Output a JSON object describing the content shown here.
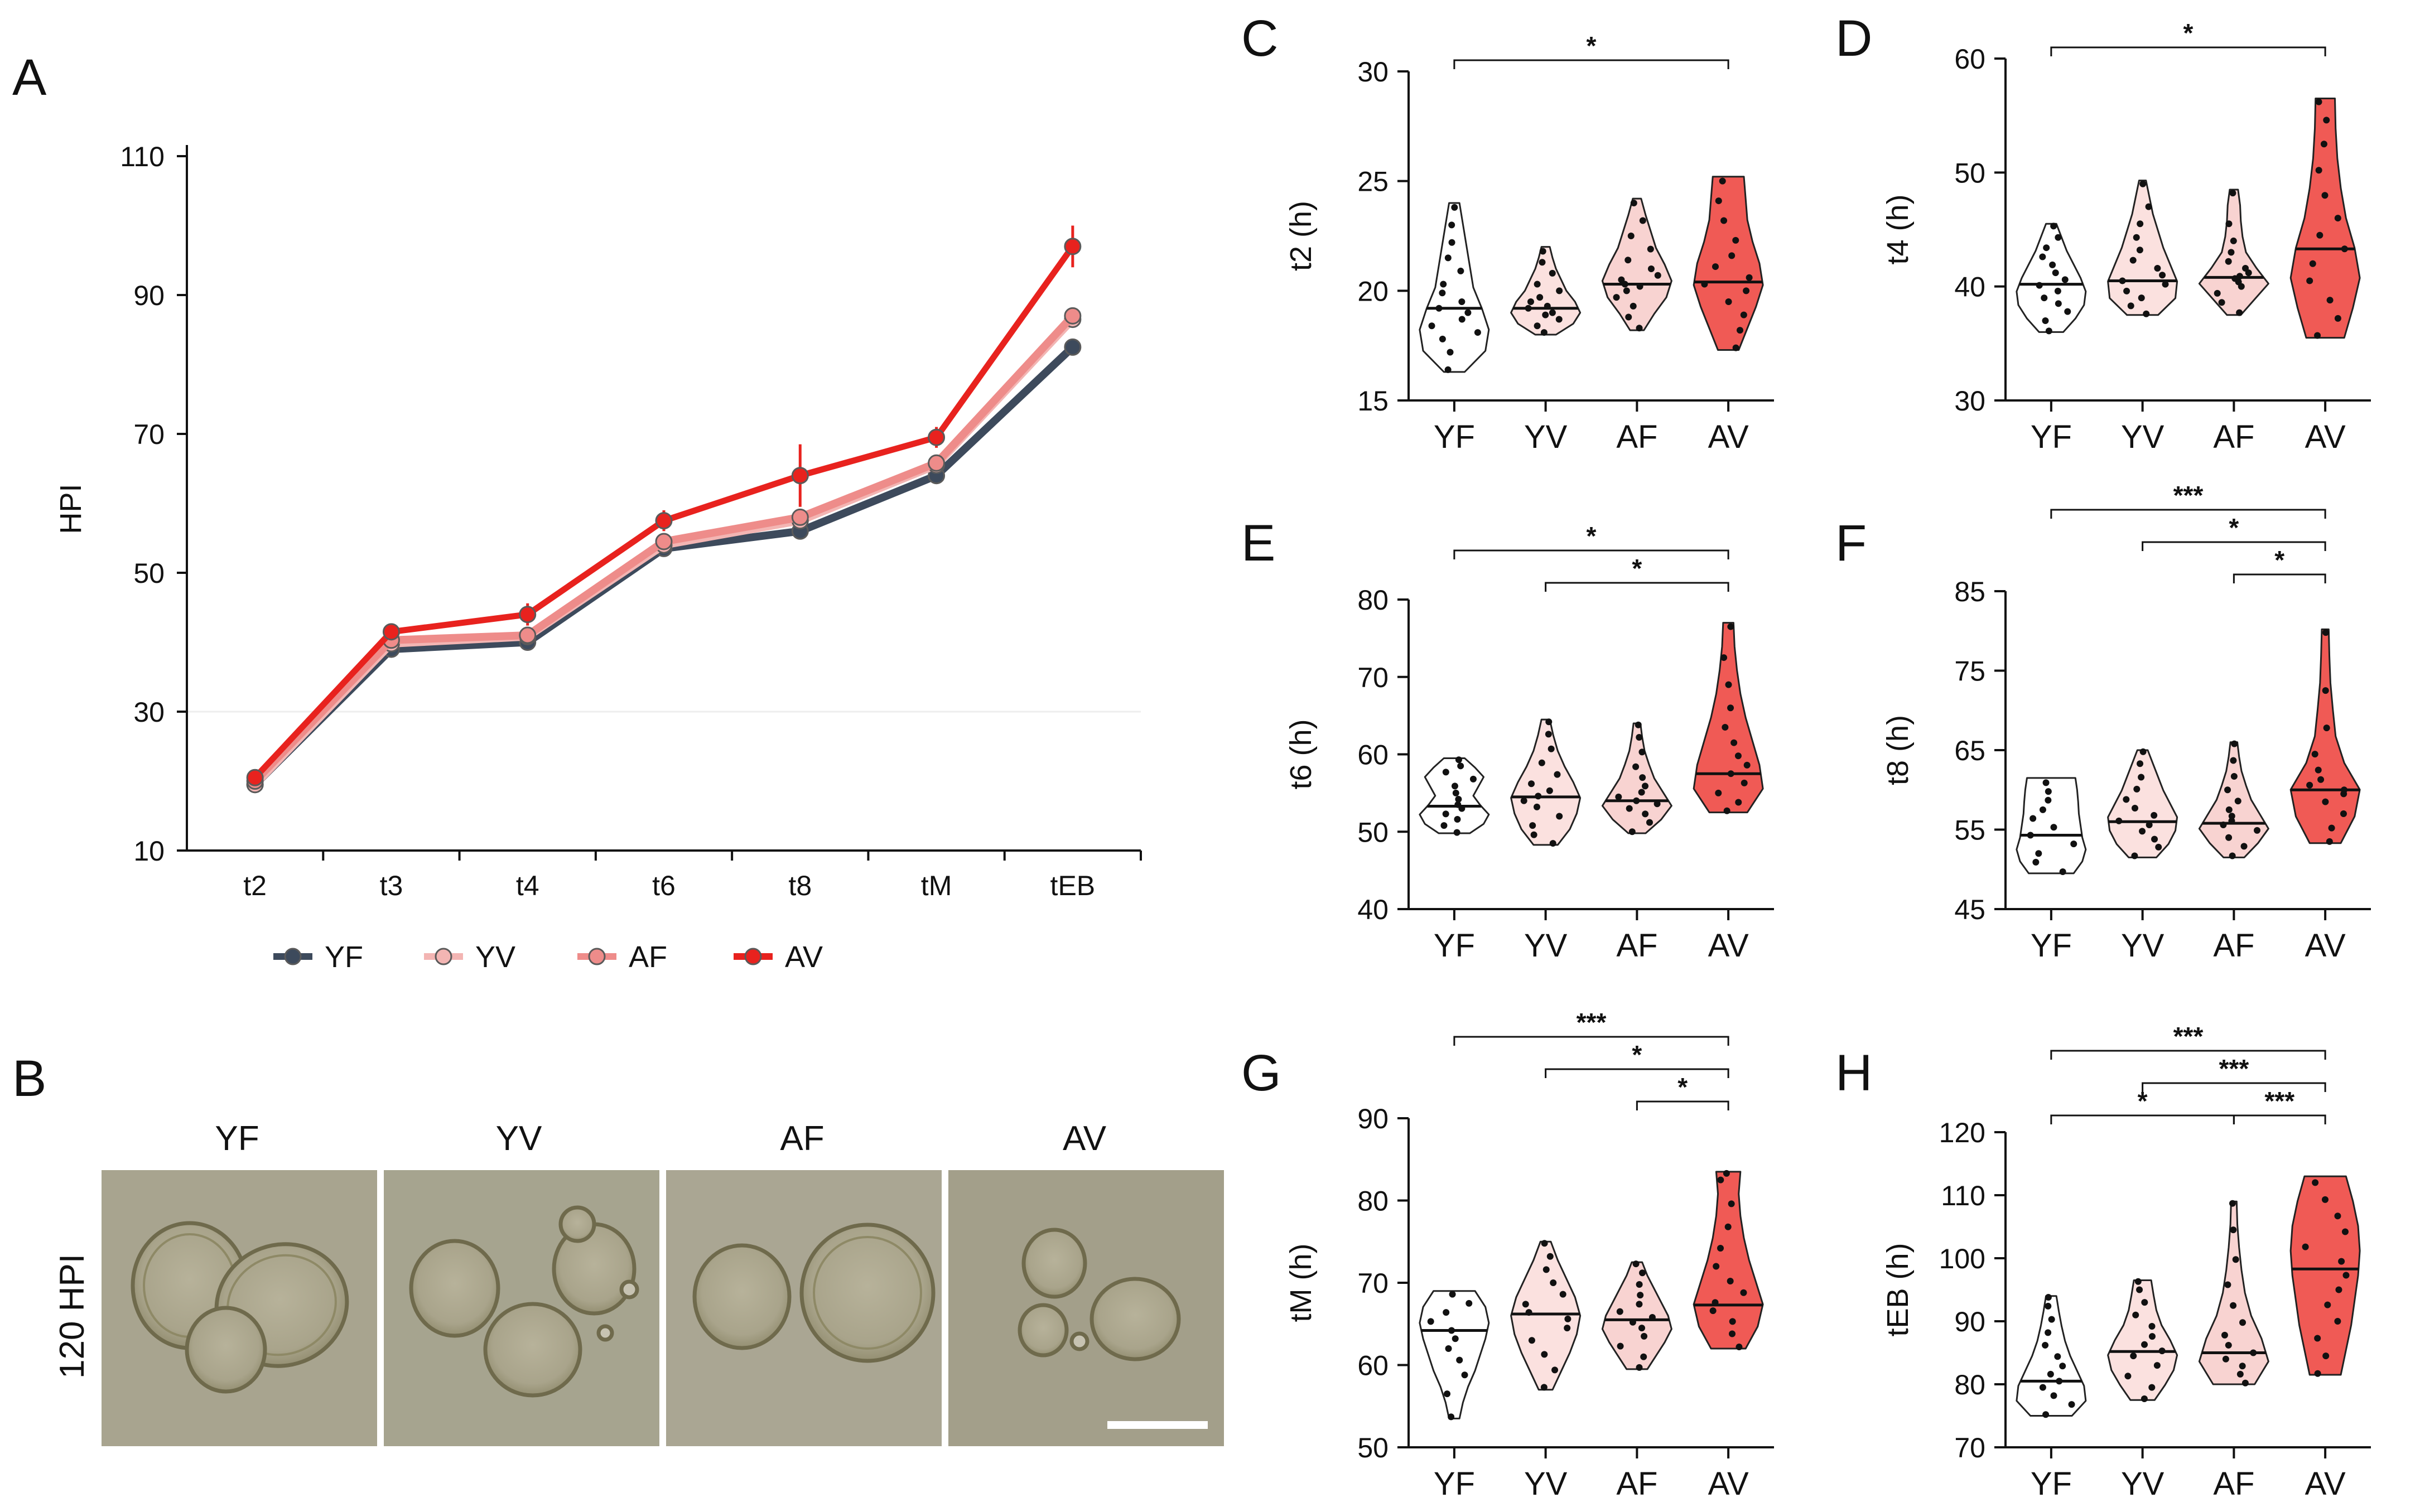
{
  "panels": {
    "A": "A",
    "B": "B",
    "C": "C",
    "D": "D",
    "E": "E",
    "F": "F",
    "G": "G",
    "H": "H"
  },
  "colors": {
    "YF": "#3d4a5c",
    "YV": "#f3b5b3",
    "AF": "#ee8c8a",
    "AV": "#e8221e",
    "YF_fill": "#ffffff",
    "YV_fill": "#fbe1df",
    "AF_fill": "#f8d3d1",
    "AV_fill": "#f05a55"
  },
  "groups": [
    "YF",
    "YV",
    "AF",
    "AV"
  ],
  "photo": {
    "row_label": "120 HPI",
    "columns": [
      "YF",
      "YV",
      "AF",
      "AV"
    ]
  },
  "chart_data": [
    {
      "id": "A",
      "type": "line",
      "ylabel": "HPI",
      "ylim": [
        10,
        110
      ],
      "yticks": [
        10,
        30,
        50,
        70,
        90,
        110
      ],
      "categories": [
        "t2",
        "t3",
        "t4",
        "t6",
        "t8",
        "tM",
        "tEB"
      ],
      "legend_position": "bottom",
      "series": [
        {
          "name": "YF",
          "values": [
            19.5,
            39,
            40,
            53.5,
            56,
            64,
            82.5
          ],
          "err": [
            0.5,
            0.6,
            0.6,
            0.8,
            0.8,
            0.8,
            1.2
          ]
        },
        {
          "name": "YV",
          "values": [
            19.5,
            39.8,
            40.8,
            54,
            57.5,
            65.5,
            86.5
          ],
          "err": [
            0.5,
            0.6,
            0.6,
            0.8,
            1.0,
            1.0,
            1.2
          ]
        },
        {
          "name": "AF",
          "values": [
            20,
            40.3,
            41,
            54.5,
            58,
            65.8,
            87
          ],
          "err": [
            0.5,
            0.6,
            0.6,
            0.8,
            1.0,
            1.0,
            1.2
          ]
        },
        {
          "name": "AV",
          "values": [
            20.5,
            41.5,
            44,
            57.5,
            64,
            69.5,
            97
          ],
          "err": [
            0.6,
            0.8,
            1.6,
            1.5,
            4.5,
            1.5,
            3.0
          ]
        }
      ]
    },
    {
      "id": "C",
      "type": "violin",
      "ylabel": "t2 (h)",
      "ylim": [
        15,
        30
      ],
      "yticks": [
        15,
        20,
        25,
        30
      ],
      "categories": [
        "YF",
        "YV",
        "AF",
        "AV"
      ],
      "violins": [
        {
          "min": 16.3,
          "max": 24,
          "median": 19.2,
          "profile": [
            0.3,
            0.9,
            1.0,
            0.8,
            0.55,
            0.45,
            0.35,
            0.25,
            0.15
          ],
          "points": [
            16.4,
            17.2,
            17.8,
            18.1,
            18.4,
            18.7,
            19.0,
            19.2,
            19.5,
            19.9,
            20.3,
            20.9,
            21.5,
            22.2,
            23.0,
            23.8
          ]
        },
        {
          "min": 18,
          "max": 22,
          "median": 19.2,
          "profile": [
            0.3,
            0.8,
            1.0,
            0.85,
            0.6,
            0.45,
            0.3,
            0.2,
            0.12
          ],
          "points": [
            18.1,
            18.4,
            18.7,
            18.9,
            19.0,
            19.2,
            19.3,
            19.5,
            19.7,
            20.0,
            20.3,
            20.8,
            21.3,
            21.8
          ]
        },
        {
          "min": 18.2,
          "max": 24.2,
          "median": 20.3,
          "profile": [
            0.2,
            0.5,
            0.85,
            1.0,
            0.8,
            0.55,
            0.4,
            0.25,
            0.12
          ],
          "points": [
            18.3,
            18.8,
            19.3,
            19.7,
            20.0,
            20.2,
            20.3,
            20.5,
            20.7,
            21.0,
            21.4,
            21.9,
            22.5,
            23.2,
            24.0
          ]
        },
        {
          "min": 17.3,
          "max": 25.2,
          "median": 20.4,
          "profile": [
            0.3,
            0.55,
            0.8,
            1.0,
            0.9,
            0.7,
            0.55,
            0.5,
            0.45
          ],
          "points": [
            17.4,
            18.2,
            18.9,
            19.5,
            20.0,
            20.3,
            20.6,
            21.1,
            21.6,
            22.3,
            23.2,
            24.1,
            25.0
          ]
        }
      ],
      "comparisons": [
        {
          "from": 0,
          "to": 3,
          "level": 1,
          "label": "*"
        }
      ]
    },
    {
      "id": "D",
      "type": "violin",
      "ylabel": "t4 (h)",
      "ylim": [
        30,
        60
      ],
      "yticks": [
        30,
        40,
        50,
        60
      ],
      "categories": [
        "YF",
        "YV",
        "AF",
        "AV"
      ],
      "violins": [
        {
          "min": 36,
          "max": 45.5,
          "median": 40.2,
          "profile": [
            0.35,
            0.7,
            0.95,
            1.0,
            0.85,
            0.65,
            0.45,
            0.3,
            0.15
          ],
          "points": [
            36.1,
            37.0,
            37.8,
            38.5,
            39.0,
            39.6,
            40.1,
            40.6,
            41.2,
            41.9,
            42.6,
            43.4,
            44.3,
            45.3
          ]
        },
        {
          "min": 37.5,
          "max": 49.3,
          "median": 40.5,
          "profile": [
            0.45,
            0.95,
            1.0,
            0.8,
            0.6,
            0.45,
            0.3,
            0.2,
            0.1
          ],
          "points": [
            37.6,
            38.3,
            39.0,
            39.6,
            40.2,
            40.5,
            41.0,
            41.6,
            42.3,
            43.2,
            44.3,
            45.5,
            47.0,
            49.0
          ]
        },
        {
          "min": 37.5,
          "max": 48.5,
          "median": 40.8,
          "profile": [
            0.2,
            0.6,
            1.0,
            0.65,
            0.35,
            0.25,
            0.2,
            0.18,
            0.12
          ],
          "points": [
            37.7,
            38.6,
            39.4,
            40.0,
            40.4,
            40.7,
            40.9,
            41.2,
            41.6,
            42.2,
            43.0,
            44.0,
            45.5,
            48.2
          ]
        },
        {
          "min": 35.5,
          "max": 56.5,
          "median": 43.3,
          "profile": [
            0.55,
            0.8,
            1.0,
            0.85,
            0.6,
            0.45,
            0.35,
            0.3,
            0.28
          ],
          "points": [
            35.7,
            37.2,
            38.8,
            40.5,
            42.0,
            43.3,
            44.5,
            46.0,
            48.0,
            50.2,
            52.5,
            54.6,
            56.2
          ]
        }
      ],
      "comparisons": [
        {
          "from": 0,
          "to": 3,
          "level": 1,
          "label": "*"
        }
      ]
    },
    {
      "id": "E",
      "type": "violin",
      "ylabel": "t6 (h)",
      "ylim": [
        40,
        80
      ],
      "yticks": [
        40,
        50,
        60,
        70,
        80
      ],
      "categories": [
        "YF",
        "YV",
        "AF",
        "AV"
      ],
      "violins": [
        {
          "min": 49.8,
          "max": 59.5,
          "median": 53.3,
          "profile": [
            0.45,
            0.85,
            1.0,
            0.75,
            0.55,
            0.7,
            0.85,
            0.6,
            0.3
          ],
          "points": [
            49.9,
            50.8,
            51.6,
            52.3,
            53.0,
            53.5,
            54.2,
            55.0,
            55.9,
            56.8,
            57.7,
            58.5,
            59.3
          ]
        },
        {
          "min": 48.3,
          "max": 64.5,
          "median": 54.5,
          "profile": [
            0.35,
            0.7,
            0.9,
            1.0,
            0.8,
            0.55,
            0.35,
            0.22,
            0.12
          ],
          "points": [
            48.5,
            49.6,
            50.8,
            52.0,
            53.2,
            54.0,
            54.6,
            55.3,
            56.2,
            57.4,
            58.9,
            60.7,
            62.6,
            64.2
          ]
        },
        {
          "min": 49.8,
          "max": 64,
          "median": 54,
          "profile": [
            0.25,
            0.7,
            1.0,
            0.75,
            0.5,
            0.35,
            0.22,
            0.15,
            0.1
          ],
          "points": [
            50.0,
            51.2,
            52.3,
            53.0,
            53.6,
            54.0,
            54.5,
            55.1,
            55.9,
            57.0,
            58.4,
            60.3,
            62.2,
            63.8
          ]
        },
        {
          "min": 52.5,
          "max": 77,
          "median": 57.5,
          "profile": [
            0.55,
            1.0,
            0.9,
            0.7,
            0.5,
            0.35,
            0.25,
            0.18,
            0.15
          ],
          "points": [
            52.7,
            53.8,
            55.0,
            56.3,
            57.5,
            58.6,
            59.8,
            61.5,
            63.5,
            66.0,
            69.0,
            72.5,
            76.5
          ]
        }
      ],
      "comparisons": [
        {
          "from": 0,
          "to": 3,
          "level": 2,
          "label": "*"
        },
        {
          "from": 1,
          "to": 3,
          "level": 1,
          "label": "*"
        }
      ]
    },
    {
      "id": "F",
      "type": "violin",
      "ylabel": "t8 (h)",
      "ylim": [
        45,
        85
      ],
      "yticks": [
        45,
        55,
        65,
        75,
        85
      ],
      "categories": [
        "YF",
        "YV",
        "AF",
        "AV"
      ],
      "violins": [
        {
          "min": 49.5,
          "max": 61.5,
          "median": 54.3,
          "profile": [
            0.65,
            0.9,
            1.0,
            0.9,
            0.85,
            0.8,
            0.78,
            0.75,
            0.7
          ],
          "points": [
            49.7,
            50.9,
            52.0,
            53.2,
            54.3,
            55.3,
            56.4,
            57.5,
            58.7,
            59.8,
            60.9
          ]
        },
        {
          "min": 51.5,
          "max": 65,
          "median": 56,
          "profile": [
            0.4,
            0.75,
            0.95,
            1.0,
            0.8,
            0.6,
            0.45,
            0.3,
            0.15
          ],
          "points": [
            51.7,
            52.8,
            53.8,
            54.8,
            55.6,
            56.1,
            56.8,
            57.7,
            58.8,
            60.1,
            61.6,
            63.3,
            64.8
          ]
        },
        {
          "min": 51.5,
          "max": 66,
          "median": 55.8,
          "profile": [
            0.3,
            0.7,
            1.0,
            0.75,
            0.5,
            0.35,
            0.22,
            0.15,
            0.1
          ],
          "points": [
            51.7,
            52.9,
            54.0,
            54.9,
            55.6,
            56.1,
            56.7,
            57.5,
            58.6,
            60.0,
            61.7,
            63.7,
            65.8
          ]
        },
        {
          "min": 53.3,
          "max": 80.2,
          "median": 60,
          "profile": [
            0.45,
            0.85,
            1.0,
            0.55,
            0.3,
            0.22,
            0.15,
            0.12,
            0.1
          ],
          "points": [
            53.5,
            55.2,
            57.0,
            58.5,
            59.5,
            60.0,
            60.6,
            61.3,
            62.5,
            64.5,
            67.8,
            72.5,
            79.8
          ]
        }
      ],
      "comparisons": [
        {
          "from": 0,
          "to": 3,
          "level": 3,
          "label": "***"
        },
        {
          "from": 1,
          "to": 3,
          "level": 2,
          "label": "*"
        },
        {
          "from": 2,
          "to": 3,
          "level": 1,
          "label": "*"
        }
      ]
    },
    {
      "id": "G",
      "type": "violin",
      "ylabel": "tM (h)",
      "ylim": [
        50,
        90
      ],
      "yticks": [
        50,
        60,
        70,
        80,
        90
      ],
      "categories": [
        "YF",
        "YV",
        "AF",
        "AV"
      ],
      "violins": [
        {
          "min": 53.5,
          "max": 69,
          "median": 64.2,
          "profile": [
            0.15,
            0.25,
            0.4,
            0.6,
            0.75,
            0.9,
            1.0,
            0.9,
            0.6
          ],
          "points": [
            53.7,
            56.5,
            58.8,
            60.6,
            62.0,
            63.2,
            64.2,
            65.3,
            66.4,
            67.5,
            68.6
          ]
        },
        {
          "min": 57,
          "max": 75,
          "median": 66.2,
          "profile": [
            0.2,
            0.45,
            0.7,
            0.9,
            1.0,
            0.85,
            0.6,
            0.35,
            0.15
          ],
          "points": [
            57.3,
            59.4,
            61.3,
            63.0,
            64.5,
            65.6,
            66.4,
            67.4,
            68.6,
            70.0,
            71.6,
            73.2,
            74.8
          ]
        },
        {
          "min": 59.5,
          "max": 72.5,
          "median": 65.5,
          "profile": [
            0.3,
            0.55,
            0.8,
            1.0,
            0.9,
            0.7,
            0.5,
            0.3,
            0.15
          ],
          "points": [
            59.7,
            61.0,
            62.3,
            63.5,
            64.5,
            65.2,
            65.8,
            66.5,
            67.4,
            68.5,
            69.8,
            71.2,
            72.3
          ]
        },
        {
          "min": 62,
          "max": 83.5,
          "median": 67.3,
          "profile": [
            0.5,
            0.85,
            1.0,
            0.8,
            0.6,
            0.45,
            0.35,
            0.3,
            0.35
          ],
          "points": [
            62.2,
            63.8,
            65.3,
            66.6,
            67.6,
            68.8,
            70.2,
            72.0,
            74.2,
            76.8,
            79.6,
            82.5,
            83.3
          ]
        }
      ],
      "comparisons": [
        {
          "from": 0,
          "to": 3,
          "level": 3,
          "label": "***"
        },
        {
          "from": 1,
          "to": 3,
          "level": 2,
          "label": "*"
        },
        {
          "from": 2,
          "to": 3,
          "level": 1,
          "label": "*"
        }
      ]
    },
    {
      "id": "H",
      "type": "violin",
      "ylabel": "tEB (h)",
      "ylim": [
        70,
        120
      ],
      "yticks": [
        70,
        80,
        90,
        100,
        110,
        120
      ],
      "categories": [
        "YF",
        "YV",
        "AF",
        "AV"
      ],
      "violins": [
        {
          "min": 75,
          "max": 94,
          "median": 80.5,
          "profile": [
            0.6,
            1.0,
            0.95,
            0.75,
            0.55,
            0.4,
            0.3,
            0.22,
            0.15
          ],
          "points": [
            75.2,
            76.8,
            78.2,
            79.5,
            80.5,
            81.6,
            82.9,
            84.4,
            86.2,
            88.2,
            90.3,
            92.4,
            93.8
          ]
        },
        {
          "min": 77.5,
          "max": 96.5,
          "median": 85.2,
          "profile": [
            0.35,
            0.65,
            0.9,
            1.0,
            0.8,
            0.55,
            0.4,
            0.32,
            0.25
          ],
          "points": [
            77.7,
            79.5,
            81.3,
            83.0,
            84.5,
            85.3,
            86.3,
            87.6,
            89.2,
            91.0,
            93.0,
            95.0,
            96.3
          ]
        },
        {
          "min": 80,
          "max": 109,
          "median": 85,
          "profile": [
            0.6,
            1.0,
            0.8,
            0.5,
            0.32,
            0.22,
            0.15,
            0.1,
            0.08
          ],
          "points": [
            80.2,
            81.6,
            82.9,
            84.0,
            85.0,
            86.2,
            87.8,
            89.8,
            92.5,
            95.8,
            99.8,
            104.5,
            108.7
          ]
        },
        {
          "min": 81.5,
          "max": 113,
          "median": 98.3,
          "profile": [
            0.45,
            0.6,
            0.75,
            0.85,
            0.95,
            1.0,
            0.95,
            0.8,
            0.6
          ],
          "points": [
            81.7,
            84.5,
            87.3,
            90.0,
            92.6,
            95.0,
            97.3,
            99.5,
            101.8,
            104.2,
            106.7,
            109.3,
            112.0
          ]
        }
      ],
      "comparisons": [
        {
          "from": 0,
          "to": 3,
          "level": 3,
          "label": "***"
        },
        {
          "from": 1,
          "to": 3,
          "level": 2,
          "label": "***"
        },
        {
          "from": 0,
          "to": 2,
          "level": 1,
          "label": "*"
        },
        {
          "from": 2,
          "to": 3,
          "level": 1,
          "label": "***"
        }
      ]
    }
  ]
}
